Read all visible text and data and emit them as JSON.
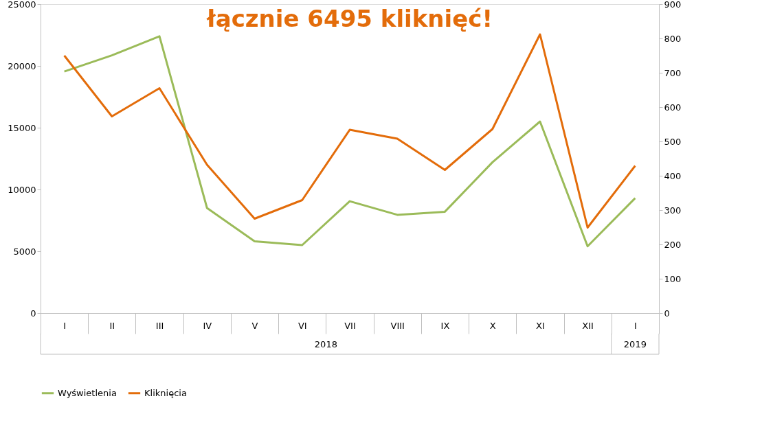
{
  "chart_data": {
    "type": "line",
    "title": "łącznie 6495 kliknięć!",
    "categories": [
      "I",
      "II",
      "III",
      "IV",
      "V",
      "VI",
      "VII",
      "VIII",
      "IX",
      "X",
      "XI",
      "XII",
      "I"
    ],
    "annotations": [
      "2018",
      "2019"
    ],
    "series": [
      {
        "name": "Wyświetlenia",
        "color": "#9bbb59",
        "values": [
          19550,
          20850,
          22400,
          8500,
          5800,
          5500,
          9050,
          7950,
          8200,
          12200,
          15500,
          5400,
          9300
        ]
      },
      {
        "name": "Kliknięcia",
        "color": "#e36c0a",
        "axis": "y2",
        "values": [
          750,
          573,
          655,
          432,
          275,
          329,
          534,
          508,
          417,
          536,
          812,
          249,
          429
        ]
      }
    ],
    "ylim": [
      0,
      25000
    ],
    "yticks": [
      0,
      5000,
      10000,
      15000,
      20000,
      25000
    ],
    "y2lim": [
      0,
      900
    ],
    "y2ticks": [
      0,
      100,
      200,
      300,
      400,
      500,
      600,
      700,
      800,
      900
    ],
    "grid": false,
    "legend": "bottom",
    "marker": "none",
    "line_style": "solid"
  }
}
